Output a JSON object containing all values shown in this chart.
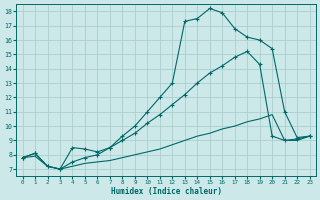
{
  "xlabel": "Humidex (Indice chaleur)",
  "xlim": [
    -0.5,
    23.5
  ],
  "ylim": [
    6.5,
    18.5
  ],
  "xticks": [
    0,
    1,
    2,
    3,
    4,
    5,
    6,
    7,
    8,
    9,
    10,
    11,
    12,
    13,
    14,
    15,
    16,
    17,
    18,
    19,
    20,
    21,
    22,
    23
  ],
  "yticks": [
    7,
    8,
    9,
    10,
    11,
    12,
    13,
    14,
    15,
    16,
    17,
    18
  ],
  "bg_color": "#cce8e8",
  "grid_color": "#aacece",
  "line_color": "#006868",
  "line1_x": [
    0,
    1,
    2,
    3,
    4,
    5,
    6,
    7,
    8,
    9,
    10,
    11,
    12,
    13,
    14,
    15,
    16,
    17,
    18,
    19,
    20,
    21,
    22,
    23
  ],
  "line1_y": [
    7.8,
    8.1,
    7.2,
    7.0,
    8.5,
    8.4,
    8.2,
    8.5,
    9.3,
    10.0,
    11.0,
    12.0,
    13.0,
    17.3,
    17.5,
    18.2,
    17.9,
    16.8,
    16.2,
    16.0,
    15.4,
    11.0,
    9.2,
    9.3
  ],
  "line2_x": [
    0,
    1,
    2,
    3,
    4,
    5,
    6,
    7,
    8,
    9,
    10,
    11,
    12,
    13,
    14,
    15,
    16,
    17,
    18,
    19,
    20,
    21,
    22,
    23
  ],
  "line2_y": [
    7.8,
    8.1,
    7.2,
    7.0,
    7.5,
    7.8,
    8.0,
    8.5,
    9.0,
    9.5,
    10.2,
    10.8,
    11.5,
    12.2,
    13.0,
    13.7,
    14.2,
    14.8,
    15.2,
    14.3,
    9.3,
    9.0,
    9.1,
    9.3
  ],
  "line3_x": [
    0,
    1,
    2,
    3,
    4,
    5,
    6,
    7,
    8,
    9,
    10,
    11,
    12,
    13,
    14,
    15,
    16,
    17,
    18,
    19,
    20,
    21,
    22,
    23
  ],
  "line3_y": [
    7.8,
    7.9,
    7.2,
    7.0,
    7.2,
    7.4,
    7.5,
    7.6,
    7.8,
    8.0,
    8.2,
    8.4,
    8.7,
    9.0,
    9.3,
    9.5,
    9.8,
    10.0,
    10.3,
    10.5,
    10.8,
    9.0,
    9.0,
    9.3
  ]
}
